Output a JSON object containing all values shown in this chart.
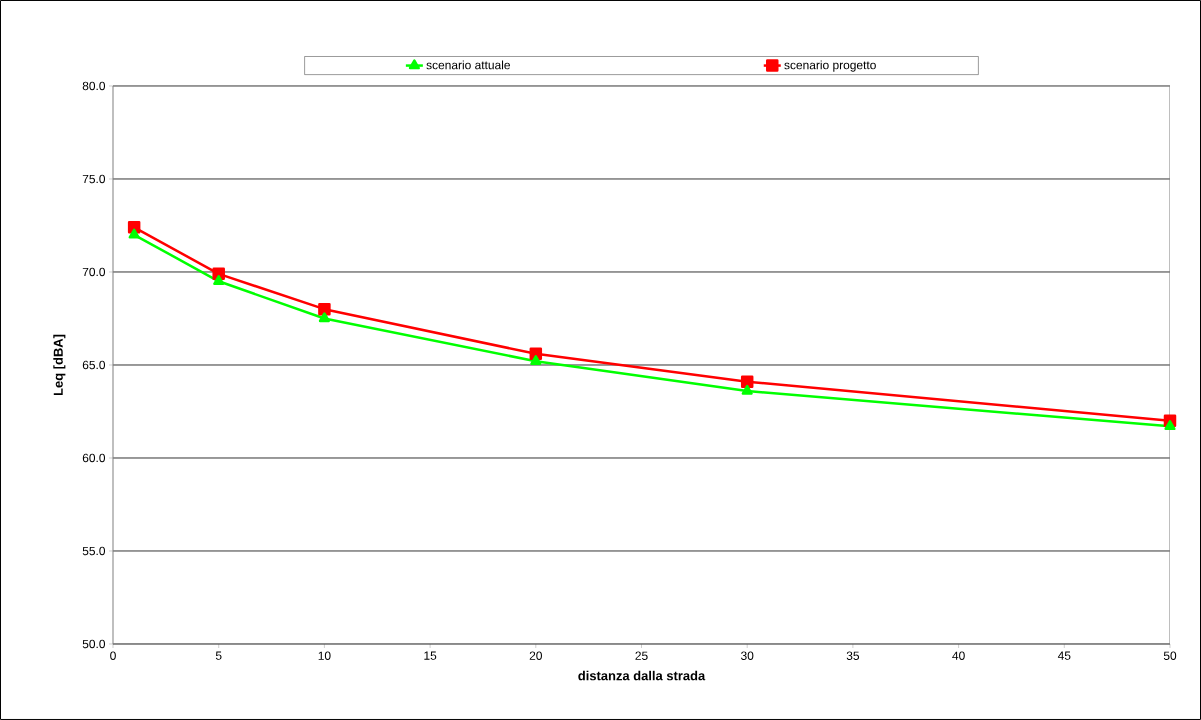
{
  "chart_data": {
    "type": "line",
    "xlabel": "distanza dalla strada",
    "ylabel": "Leq [dBA]",
    "xlim": [
      0,
      50
    ],
    "xticks": [
      0,
      5,
      10,
      15,
      20,
      25,
      30,
      35,
      40,
      45,
      50
    ],
    "ylim": [
      50,
      80
    ],
    "yticks": [
      {
        "value": 50,
        "label": "50.0"
      },
      {
        "value": 55,
        "label": "55.0"
      },
      {
        "value": 60,
        "label": "60.0"
      },
      {
        "value": 65,
        "label": "65.0"
      },
      {
        "value": 70,
        "label": "70.0"
      },
      {
        "value": 75,
        "label": "75.0"
      },
      {
        "value": 80,
        "label": "80.0"
      }
    ],
    "x": [
      1,
      5,
      10,
      20,
      30,
      50
    ],
    "grid": "y",
    "legend": "top",
    "line_style": "solid",
    "series": [
      {
        "name": "scenario attuale",
        "color": "#00ff00",
        "marker": "triangle",
        "values": [
          72.0,
          69.5,
          67.5,
          65.2,
          63.6,
          61.7
        ]
      },
      {
        "name": "scenario progetto",
        "color": "#ff0000",
        "marker": "square",
        "values": [
          72.4,
          69.9,
          68.0,
          65.6,
          64.1,
          62.0
        ]
      }
    ]
  }
}
